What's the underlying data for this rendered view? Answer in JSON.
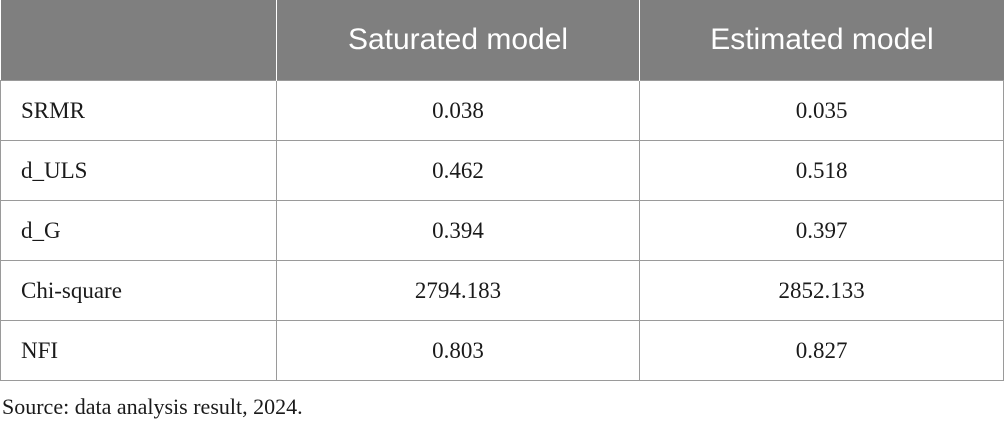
{
  "table": {
    "header": [
      "Saturated model",
      "Estimated model"
    ],
    "rows": [
      [
        "SRMR",
        "0.038",
        "0.035"
      ],
      [
        "d_ULS",
        "0.462",
        "0.518"
      ],
      [
        "d_G",
        "0.394",
        "0.397"
      ],
      [
        "Chi-square",
        "2794.183",
        "2852.133"
      ],
      [
        "NFI",
        "0.803",
        "0.827"
      ]
    ]
  },
  "source": "Source: data analysis result, 2024."
}
